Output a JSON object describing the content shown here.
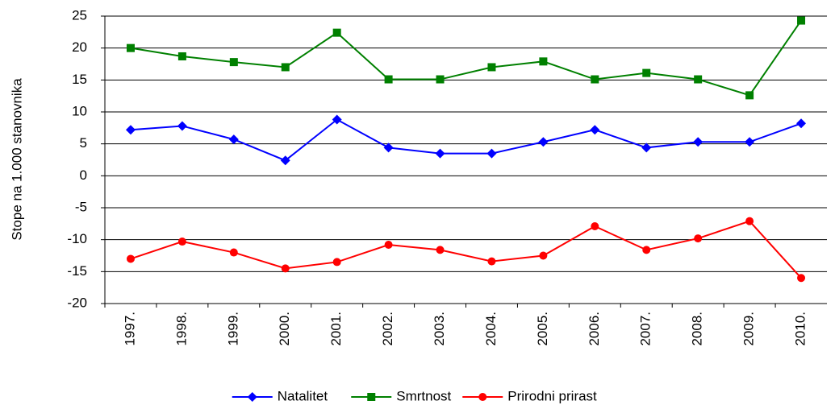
{
  "chart_data": {
    "type": "line",
    "y_label": "Stope na 1.000 stanovnika",
    "categories": [
      "1997.",
      "1998.",
      "1999.",
      "2000.",
      "2001.",
      "2002.",
      "2003.",
      "2004.",
      "2005.",
      "2006.",
      "2007.",
      "2008.",
      "2009.",
      "2010."
    ],
    "series": [
      {
        "name": "Natalitet",
        "color": "#0000ff",
        "marker": "diamond",
        "values": [
          7.2,
          7.8,
          5.7,
          2.4,
          8.8,
          4.4,
          3.5,
          3.5,
          5.3,
          7.2,
          4.4,
          5.3,
          5.3,
          8.2
        ]
      },
      {
        "name": "Smrtnost",
        "color": "#008000",
        "marker": "square",
        "values": [
          20.0,
          18.7,
          17.8,
          17.0,
          22.4,
          15.1,
          15.1,
          17.0,
          17.9,
          15.1,
          16.1,
          15.1,
          12.6,
          24.3
        ]
      },
      {
        "name": "Prirodni prirast",
        "color": "#ff0000",
        "marker": "circle",
        "values": [
          -13.0,
          -10.3,
          -12.0,
          -14.5,
          -13.5,
          -10.8,
          -11.6,
          -13.4,
          -12.5,
          -7.9,
          -11.6,
          -9.8,
          -7.1,
          -16.0
        ]
      }
    ],
    "ylim": [
      -20,
      25
    ],
    "yticks": [
      -20,
      -15,
      -10,
      -5,
      0,
      5,
      10,
      15,
      20,
      25
    ],
    "grid": true,
    "legend": "bottom"
  }
}
